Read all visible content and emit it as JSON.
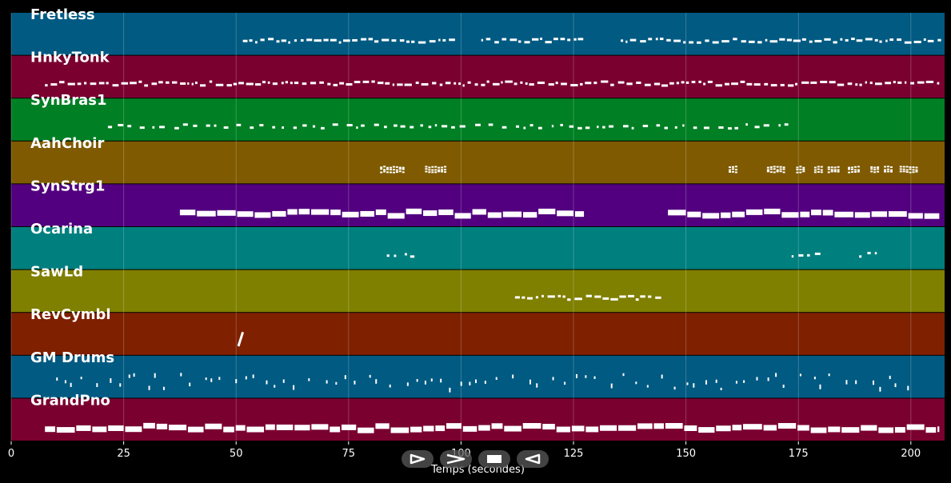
{
  "window": {
    "background": "#000000"
  },
  "axis": {
    "xlabel": "Temps (secondes)",
    "xlim": [
      0,
      207.5
    ],
    "ticks": [
      0,
      25,
      50,
      75,
      100,
      125,
      150,
      175,
      200
    ],
    "tick_labels": [
      "0",
      "25",
      "50",
      "75",
      "100",
      "125",
      "150",
      "175",
      "200"
    ]
  },
  "tracks": [
    {
      "name": "Fretless",
      "color": "#005a82",
      "note_color": "#ffffff"
    },
    {
      "name": "HnkyTonk",
      "color": "#7a0030",
      "note_color": "#ffffff"
    },
    {
      "name": "SynBras1",
      "color": "#007f24",
      "note_color": "#ffffff"
    },
    {
      "name": "AahChoir",
      "color": "#7f5a00",
      "note_color": "#ffffff"
    },
    {
      "name": "SynStrg1",
      "color": "#52007f",
      "note_color": "#ffffff"
    },
    {
      "name": "Ocarina",
      "color": "#007f7f",
      "note_color": "#ffffff"
    },
    {
      "name": "SawLd",
      "color": "#7f7f00",
      "note_color": "#ffffff"
    },
    {
      "name": "RevCymbl",
      "color": "#7f2000",
      "note_color": "#ffffff"
    },
    {
      "name": "GM Drums",
      "color": "#005a82",
      "note_color": "#ffffff"
    },
    {
      "name": "GrandPno",
      "color": "#7a0030",
      "note_color": "#ffffff"
    }
  ],
  "chart_data": {
    "type": "piano-roll",
    "xlabel": "Temps (secondes)",
    "xlim": [
      0,
      207.5
    ],
    "grid": true,
    "series": [
      {
        "name": "Fretless",
        "note_ranges": [
          [
            51.5,
            97.5
          ],
          [
            104.5,
            127.5
          ],
          [
            135.5,
            206.5
          ]
        ],
        "style": "dense-short"
      },
      {
        "name": "HnkyTonk",
        "note_ranges": [
          [
            7.5,
            206.5
          ]
        ],
        "style": "dense-short"
      },
      {
        "name": "SynBras1",
        "note_ranges": [
          [
            21.5,
            172.5
          ]
        ],
        "style": "sparse-short"
      },
      {
        "name": "AahChoir",
        "note_ranges": [
          [
            82,
            87.5
          ],
          [
            92,
            96.5
          ],
          [
            159.5,
            161
          ],
          [
            168,
            172
          ],
          [
            174.5,
            176.5
          ],
          [
            178.5,
            180
          ],
          [
            181.5,
            184
          ],
          [
            186,
            188.5
          ],
          [
            191,
            193
          ],
          [
            194,
            196
          ],
          [
            197.5,
            201.5
          ]
        ],
        "style": "clustered"
      },
      {
        "name": "SynStrg1",
        "note_ranges": [
          [
            37.5,
            127.5
          ],
          [
            146,
            206.5
          ]
        ],
        "style": "long"
      },
      {
        "name": "Ocarina",
        "note_ranges": [
          [
            83.5,
            89.5
          ],
          [
            173.5,
            180.5
          ],
          [
            188.5,
            194.5
          ]
        ],
        "style": "sparse-short"
      },
      {
        "name": "SawLd",
        "note_ranges": [
          [
            112,
            143.5
          ]
        ],
        "style": "dense-short"
      },
      {
        "name": "RevCymbl",
        "note_ranges": [
          [
            50.5,
            51.5
          ]
        ],
        "style": "single"
      },
      {
        "name": "GM Drums",
        "note_ranges": [
          [
            10,
            199.5
          ]
        ],
        "style": "hits"
      },
      {
        "name": "GrandPno",
        "note_ranges": [
          [
            7.5,
            206.5
          ]
        ],
        "style": "long"
      }
    ]
  },
  "controls": [
    {
      "name": "play-button",
      "icon": "play-icon"
    },
    {
      "name": "forward-button",
      "icon": "fast-forward-icon"
    },
    {
      "name": "stop-button",
      "icon": "stop-icon"
    },
    {
      "name": "rewind-button",
      "icon": "rewind-icon"
    }
  ]
}
